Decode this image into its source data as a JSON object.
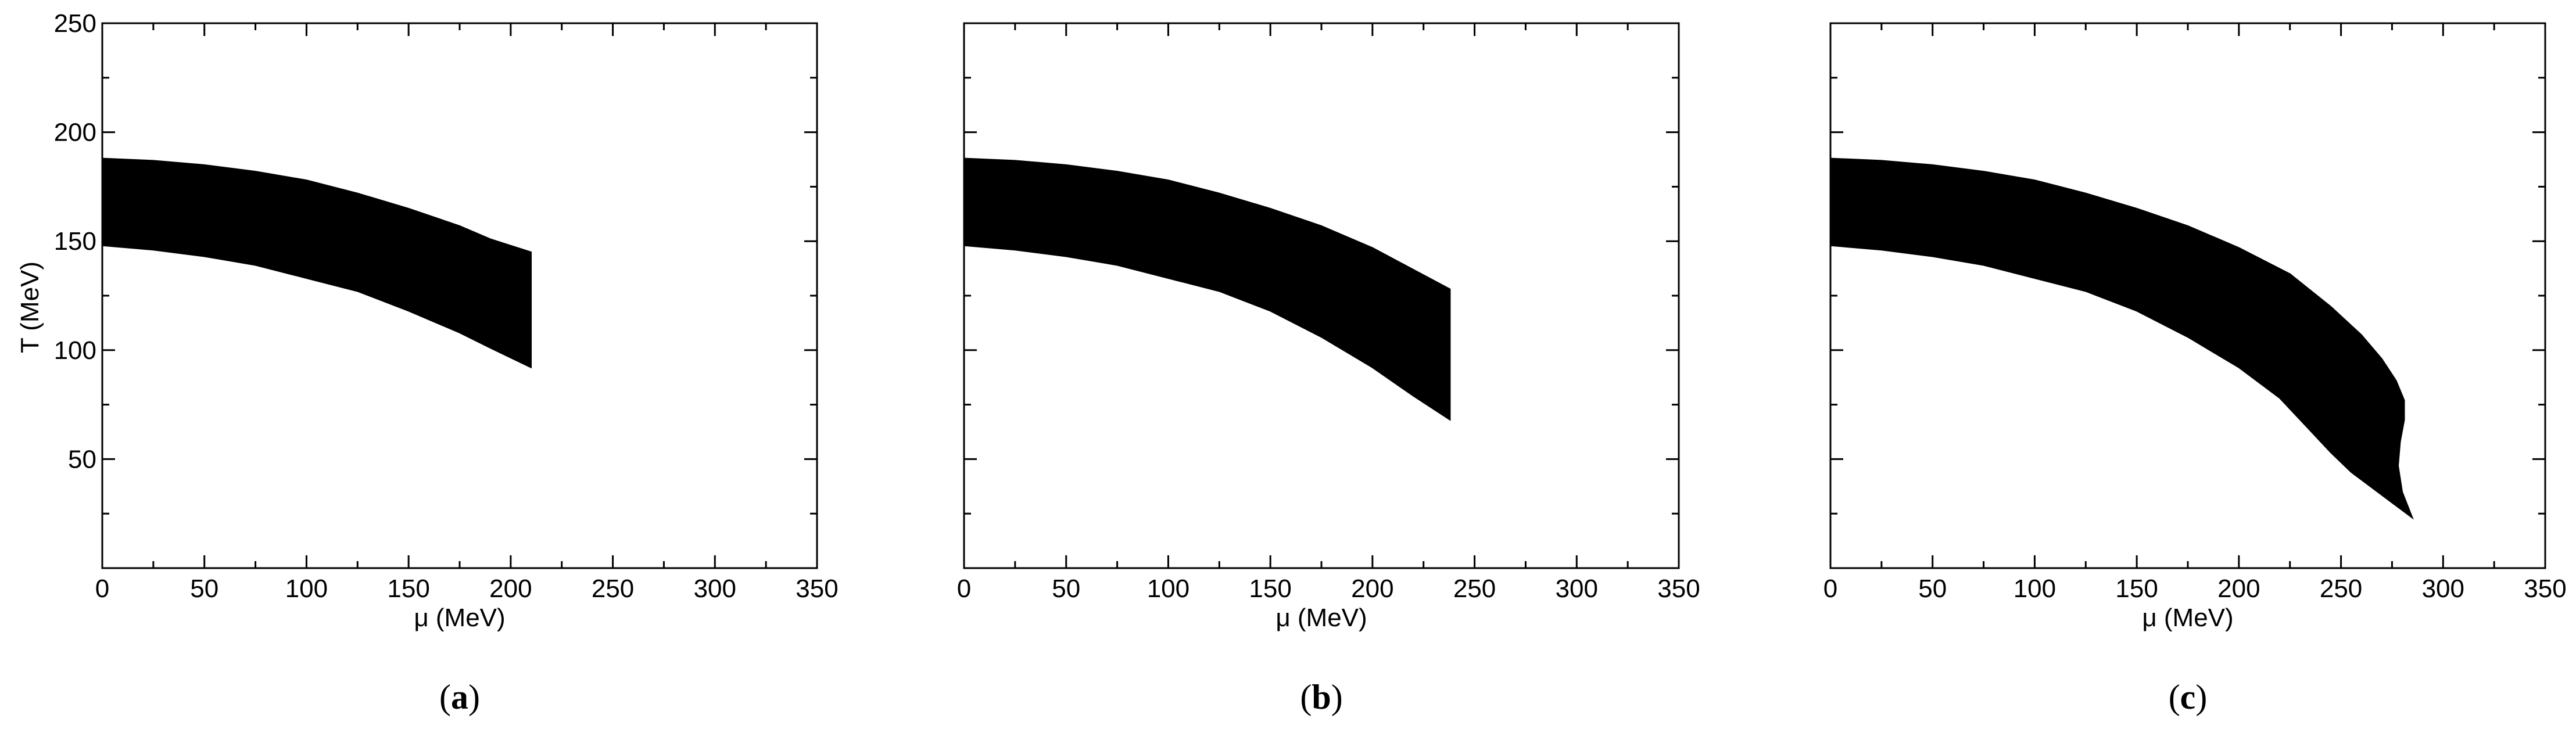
{
  "chart_data": [
    {
      "panel": "a",
      "type": "area",
      "caption": {
        "open": "(",
        "letter": "a",
        "close": ")"
      },
      "xlabel": "μ (MeV)",
      "ylabel": "T (MeV)",
      "xlim": [
        0,
        350
      ],
      "ylim": [
        0,
        250
      ],
      "xticks": [
        0,
        50,
        100,
        150,
        200,
        250,
        300,
        350
      ],
      "yticks": [
        50,
        100,
        150,
        200,
        250
      ],
      "show_ytick_labels": true,
      "upper": [
        [
          0,
          188
        ],
        [
          25,
          187
        ],
        [
          50,
          185
        ],
        [
          75,
          182
        ],
        [
          100,
          178
        ],
        [
          125,
          172
        ],
        [
          150,
          165
        ],
        [
          175,
          157
        ],
        [
          190,
          151
        ],
        [
          210,
          145
        ]
      ],
      "lower": [
        [
          0,
          148
        ],
        [
          25,
          146
        ],
        [
          50,
          143
        ],
        [
          75,
          139
        ],
        [
          100,
          133
        ],
        [
          125,
          127
        ],
        [
          150,
          118
        ],
        [
          175,
          108
        ],
        [
          190,
          101
        ],
        [
          210,
          92
        ]
      ]
    },
    {
      "panel": "b",
      "type": "area",
      "caption": {
        "open": "(",
        "letter": "b",
        "close": ")"
      },
      "xlabel": "μ (MeV)",
      "ylabel": "",
      "xlim": [
        0,
        350
      ],
      "ylim": [
        0,
        250
      ],
      "xticks": [
        0,
        50,
        100,
        150,
        200,
        250,
        300,
        350
      ],
      "yticks": [
        50,
        100,
        150,
        200,
        250
      ],
      "show_ytick_labels": false,
      "upper": [
        [
          0,
          188
        ],
        [
          25,
          187
        ],
        [
          50,
          185
        ],
        [
          75,
          182
        ],
        [
          100,
          178
        ],
        [
          125,
          172
        ],
        [
          150,
          165
        ],
        [
          175,
          157
        ],
        [
          200,
          147
        ],
        [
          220,
          137
        ],
        [
          238,
          128
        ]
      ],
      "lower": [
        [
          0,
          148
        ],
        [
          25,
          146
        ],
        [
          50,
          143
        ],
        [
          75,
          139
        ],
        [
          100,
          133
        ],
        [
          125,
          127
        ],
        [
          150,
          118
        ],
        [
          175,
          106
        ],
        [
          200,
          92
        ],
        [
          220,
          79
        ],
        [
          238,
          68
        ]
      ]
    },
    {
      "panel": "c",
      "type": "area",
      "caption": {
        "open": "(",
        "letter": "c",
        "close": ")"
      },
      "xlabel": "μ (MeV)",
      "ylabel": "",
      "xlim": [
        0,
        350
      ],
      "ylim": [
        0,
        250
      ],
      "xticks": [
        0,
        50,
        100,
        150,
        200,
        250,
        300,
        350
      ],
      "yticks": [
        50,
        100,
        150,
        200,
        250
      ],
      "show_ytick_labels": false,
      "upper": [
        [
          0,
          188
        ],
        [
          25,
          187
        ],
        [
          50,
          185
        ],
        [
          75,
          182
        ],
        [
          100,
          178
        ],
        [
          125,
          172
        ],
        [
          150,
          165
        ],
        [
          175,
          157
        ],
        [
          200,
          147
        ],
        [
          225,
          135
        ],
        [
          245,
          120
        ],
        [
          260,
          107
        ],
        [
          270,
          96
        ],
        [
          277,
          86
        ],
        [
          281,
          77
        ],
        [
          281,
          68
        ],
        [
          279,
          58
        ],
        [
          278,
          47
        ],
        [
          280,
          35
        ],
        [
          285,
          23
        ]
      ],
      "lower": [
        [
          0,
          148
        ],
        [
          25,
          146
        ],
        [
          50,
          143
        ],
        [
          75,
          139
        ],
        [
          100,
          133
        ],
        [
          125,
          127
        ],
        [
          150,
          118
        ],
        [
          175,
          106
        ],
        [
          200,
          92
        ],
        [
          220,
          78
        ],
        [
          235,
          63
        ],
        [
          245,
          53
        ],
        [
          255,
          44
        ],
        [
          265,
          37
        ],
        [
          275,
          30
        ],
        [
          285,
          23
        ]
      ]
    }
  ]
}
